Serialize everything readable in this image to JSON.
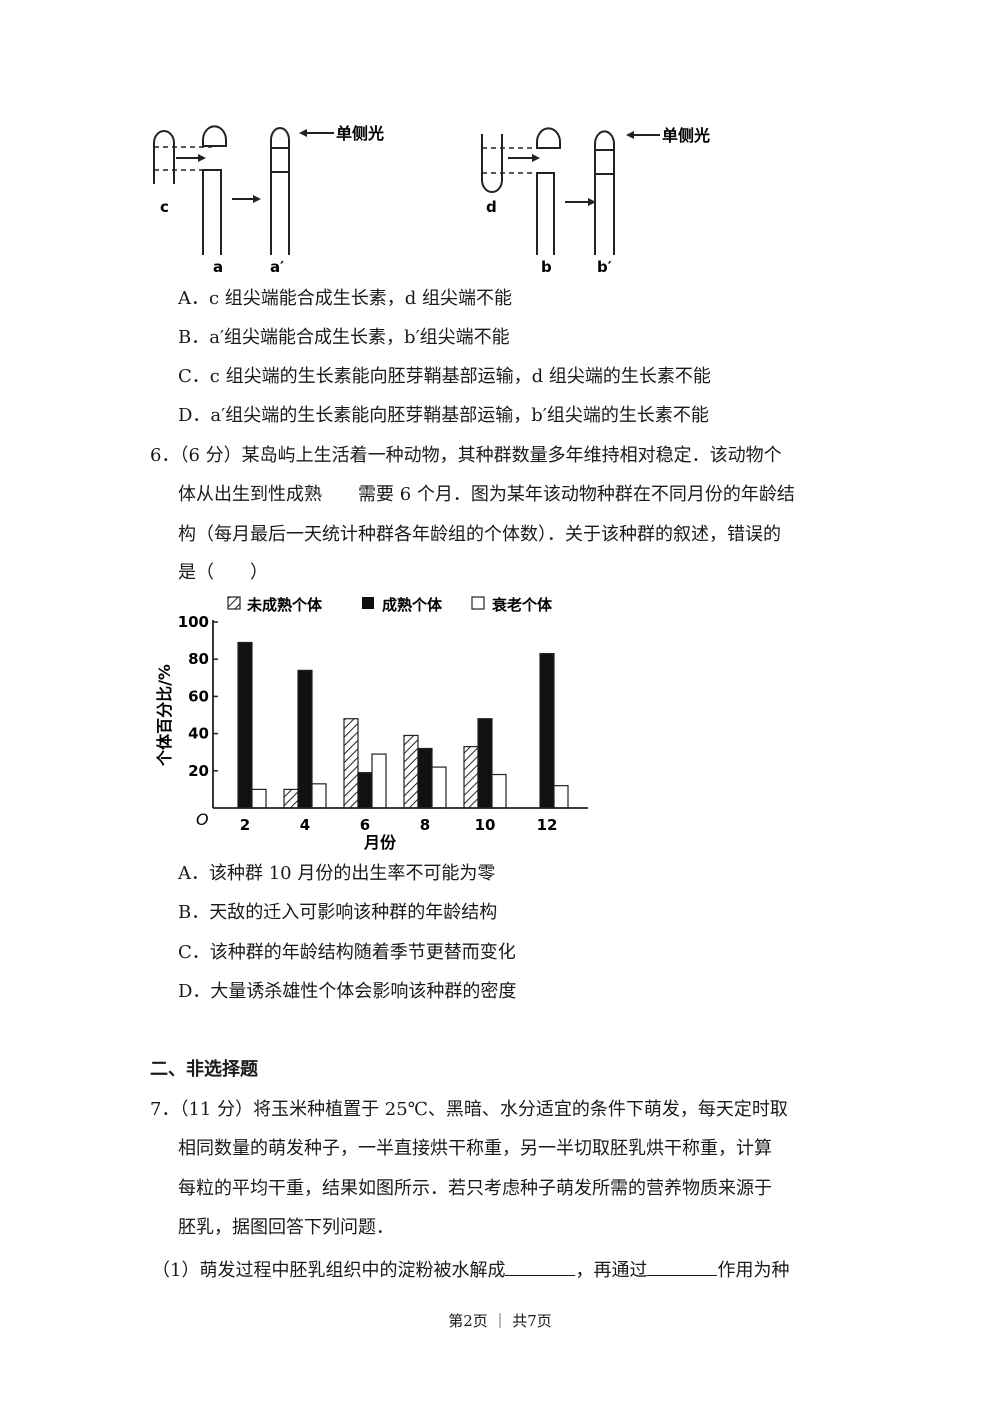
{
  "diagram": {
    "label_c": "c",
    "label_a": "a",
    "label_a_prime": "a′",
    "label_d": "d",
    "label_b": "b",
    "label_b_prime": "b′",
    "light_label_left": "单侧光",
    "light_label_right": "单侧光"
  },
  "q5_options": [
    "A．c 组尖端能合成生长素，d 组尖端不能",
    "B．a′组尖端能合成生长素，b′组尖端不能",
    "C．c 组尖端的生长素能向胚芽鞘基部运输，d 组尖端的生长素不能",
    "D．a′组尖端的生长素能向胚芽鞘基部运输，b′组尖端的生长素不能"
  ],
  "q6": {
    "lines": [
      "6．（6 分）某岛屿上生活着一种动物，其种群数量多年维持相对稳定．该动物个",
      "体从出生到性成熟　　需要 6 个月．图为某年该动物种群在不同月份的年龄结",
      "构（每月最后一天统计种群各年龄组的个体数）．关于该种群的叙述，错误的",
      "是（　　）"
    ],
    "options": [
      "A．该种群 10 月份的出生率不可能为零",
      "B．天敌的迁入可影响该种群的年龄结构",
      "C．该种群的年龄结构随着季节更替而变化",
      "D．大量诱杀雄性个体会影响该种群的密度"
    ]
  },
  "chart_data": {
    "type": "bar",
    "categories": [
      "2",
      "4",
      "6",
      "8",
      "10",
      "12"
    ],
    "series": [
      {
        "name": "未成熟个体",
        "pattern": "hatched",
        "values": [
          0,
          10,
          48,
          39,
          33,
          0
        ]
      },
      {
        "name": "成熟个体",
        "pattern": "solid-black",
        "values": [
          89,
          74,
          19,
          32,
          48,
          83
        ]
      },
      {
        "name": "衰老个体",
        "pattern": "white",
        "values": [
          10,
          13,
          29,
          22,
          18,
          12
        ]
      }
    ],
    "xlabel": "月份",
    "ylabel": "个体百分比/%",
    "origin_label": "O",
    "yticks": [
      "20",
      "40",
      "60",
      "80",
      "100"
    ],
    "ylim": [
      0,
      100
    ],
    "legend_position": "top",
    "grid": false
  },
  "section2": {
    "title": "二、非选择题"
  },
  "q7": {
    "lines": [
      "7．（11 分）将玉米种植置于 25℃、黑暗、水分适宜的条件下萌发，每天定时取",
      "相同数量的萌发种子，一半直接烘干称重，另一半切取胚乳烘干称重，计算",
      "每粒的平均干重，结果如图所示．若只考虑种子萌发所需的营养物质来源于",
      "胚乳，据图回答下列问题．"
    ],
    "sub1_a": "（1）萌发过程中胚乳组织中的淀粉被水解成",
    "sub1_b": "，再通过",
    "sub1_c": "作用为种"
  },
  "footer": "第2页 ｜ 共7页"
}
